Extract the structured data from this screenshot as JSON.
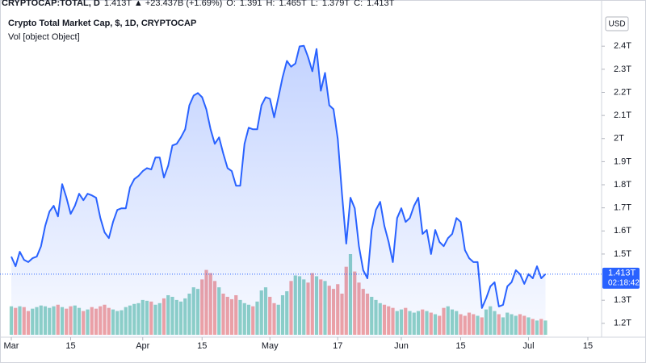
{
  "chart_data": {
    "type": "area",
    "header": [
      "CRYPTOCAP:TOTAL, D",
      "1.413T ▲ +23.437B (+1.69%)",
      "O:",
      "1.391",
      "H:",
      "1.465T",
      "L:",
      "1.379T",
      "C:",
      "1.413T"
    ],
    "header_colors": [
      "#131722",
      "#26a69a"
    ],
    "title": "Crypto Total Market Cap, $, 1D, CRYPTOCAP",
    "currency": "USD",
    "color": "#2962ff",
    "x": [
      "Mar 1",
      "Mar 2",
      "Mar 3",
      "Mar 4",
      "Mar 5",
      "Mar 6",
      "Mar 7",
      "Mar 8",
      "Mar 9",
      "Mar 10",
      "Mar 11",
      "Mar 12",
      "Mar 13",
      "Mar 14",
      "Mar 15",
      "Mar 16",
      "Mar 17",
      "Mar 18",
      "Mar 19",
      "Mar 20",
      "Mar 21",
      "Mar 22",
      "Mar 23",
      "Mar 24",
      "Mar 25",
      "Mar 26",
      "Mar 27",
      "Mar 28",
      "Mar 29",
      "Mar 30",
      "Mar 31",
      "Apr 1",
      "Apr 2",
      "Apr 3",
      "Apr 4",
      "Apr 5",
      "Apr 6",
      "Apr 7",
      "Apr 8",
      "Apr 9",
      "Apr 10",
      "Apr 11",
      "Apr 12",
      "Apr 13",
      "Apr 14",
      "Apr 15",
      "Apr 16",
      "Apr 17",
      "Apr 18",
      "Apr 19",
      "Apr 20",
      "Apr 21",
      "Apr 22",
      "Apr 23",
      "Apr 24",
      "Apr 25",
      "Apr 26",
      "Apr 27",
      "Apr 28",
      "Apr 29",
      "Apr 30",
      "May 1",
      "May 2",
      "May 3",
      "May 4",
      "May 5",
      "May 6",
      "May 7",
      "May 8",
      "May 9",
      "May 10",
      "May 11",
      "May 12",
      "May 13",
      "May 14",
      "May 15",
      "May 16",
      "May 17",
      "May 18",
      "May 19",
      "May 20",
      "May 21",
      "May 22",
      "May 23",
      "May 24",
      "May 25",
      "May 26",
      "May 27",
      "May 28",
      "May 29",
      "May 30",
      "May 31",
      "Jun 1",
      "Jun 2",
      "Jun 3",
      "Jun 4",
      "Jun 5",
      "Jun 6",
      "Jun 7",
      "Jun 8",
      "Jun 9",
      "Jun 10",
      "Jun 11",
      "Jun 12",
      "Jun 13",
      "Jun 14",
      "Jun 15",
      "Jun 16",
      "Jun 17",
      "Jun 18",
      "Jun 19",
      "Jun 20",
      "Jun 21",
      "Jun 22",
      "Jun 23",
      "Jun 24",
      "Jun 25",
      "Jun 26",
      "Jun 27",
      "Jun 28",
      "Jun 29",
      "Jun 30",
      "Jul 1",
      "Jul 2",
      "Jul 3",
      "Jul 4",
      "Jul 5"
    ],
    "values": [
      1.489,
      1.447,
      1.51,
      1.475,
      1.465,
      1.482,
      1.489,
      1.534,
      1.622,
      1.684,
      1.709,
      1.663,
      1.803,
      1.744,
      1.674,
      1.709,
      1.761,
      1.733,
      1.761,
      1.754,
      1.744,
      1.656,
      1.594,
      1.569,
      1.639,
      1.691,
      1.698,
      1.698,
      1.789,
      1.824,
      1.838,
      1.859,
      1.872,
      1.866,
      1.918,
      1.918,
      1.831,
      1.883,
      1.97,
      1.977,
      2.005,
      2.04,
      2.144,
      2.186,
      2.197,
      2.179,
      2.127,
      2.04,
      1.977,
      2.005,
      1.935,
      1.872,
      1.859,
      1.796,
      1.796,
      1.977,
      2.047,
      2.04,
      2.04,
      2.144,
      2.179,
      2.172,
      2.092,
      2.179,
      2.266,
      2.336,
      2.311,
      2.325,
      2.399,
      2.402,
      2.353,
      2.291,
      2.388,
      2.207,
      2.284,
      2.144,
      2.127,
      1.998,
      1.761,
      1.545,
      1.744,
      1.698,
      1.534,
      1.43,
      1.395,
      1.604,
      1.691,
      1.726,
      1.622,
      1.552,
      1.465,
      1.656,
      1.698,
      1.639,
      1.656,
      1.709,
      1.744,
      1.587,
      1.604,
      1.5,
      1.604,
      1.552,
      1.534,
      1.569,
      1.587,
      1.656,
      1.639,
      1.517,
      1.482,
      1.465,
      1.465,
      1.266,
      1.308,
      1.36,
      1.378,
      1.273,
      1.28,
      1.36,
      1.378,
      1.43,
      1.413,
      1.371,
      1.413,
      1.395,
      1.447,
      1.395,
      1.413
    ],
    "volume": {
      "name": "Vol [object Object]",
      "up_color": "#8fd2c6",
      "down_color": "#f2a3a3",
      "values": [
        36,
        34,
        36,
        35,
        30,
        33,
        35,
        37,
        36,
        34,
        36,
        38,
        35,
        33,
        36,
        37,
        34,
        30,
        32,
        35,
        33,
        36,
        38,
        34,
        32,
        30,
        31,
        35,
        37,
        39,
        40,
        44,
        43,
        42,
        38,
        40,
        46,
        50,
        48,
        44,
        42,
        46,
        52,
        60,
        58,
        70,
        82,
        78,
        68,
        60,
        52,
        48,
        45,
        50,
        44,
        40,
        38,
        36,
        42,
        56,
        60,
        48,
        40,
        38,
        50,
        55,
        68,
        75,
        74,
        70,
        66,
        78,
        74,
        70,
        68,
        62,
        58,
        64,
        52,
        86,
        102,
        80,
        66,
        58,
        52,
        48,
        44,
        40,
        38,
        36,
        34,
        30,
        32,
        34,
        30,
        28,
        30,
        32,
        30,
        28,
        26,
        24,
        34,
        36,
        32,
        30,
        26,
        24,
        28,
        26,
        24,
        22,
        32,
        36,
        30,
        26,
        22,
        28,
        26,
        24,
        26,
        24,
        22,
        20,
        18,
        20,
        18
      ]
    },
    "ylim": [
      1.14,
      2.53
    ],
    "yticks": [
      {
        "value": 1.2,
        "label": "1.2T"
      },
      {
        "value": 1.3,
        "label": "1.3T"
      },
      {
        "value": 1.5,
        "label": "1.5T"
      },
      {
        "value": 1.6,
        "label": "1.6T"
      },
      {
        "value": 1.7,
        "label": "1.7T"
      },
      {
        "value": 1.8,
        "label": "1.8T"
      },
      {
        "value": 1.9,
        "label": "1.9T"
      },
      {
        "value": 2,
        "label": "2T"
      },
      {
        "value": 2.1,
        "label": "2.1T"
      },
      {
        "value": 2.2,
        "label": "2.2T"
      },
      {
        "value": 2.3,
        "label": "2.3T"
      },
      {
        "value": 2.4,
        "label": "2.4T"
      }
    ],
    "xticks": [
      {
        "value": "Mar 1",
        "label": "Mar"
      },
      {
        "value": "Mar 15",
        "label": "15"
      },
      {
        "value": "Apr 1",
        "label": "Apr"
      },
      {
        "value": "Apr 15",
        "label": "15"
      },
      {
        "value": "May 1",
        "label": "May"
      },
      {
        "value": "May 17",
        "label": "17"
      },
      {
        "value": "Jun 1",
        "label": "Jun"
      },
      {
        "value": "Jun 15",
        "label": "15"
      },
      {
        "value": "Jul 1",
        "label": "Jul"
      },
      {
        "value": "Jul 15",
        "label": "15"
      }
    ],
    "price_label": {
      "value": 1.413,
      "label": "1.413T"
    },
    "countdown": "02:18:42"
  }
}
